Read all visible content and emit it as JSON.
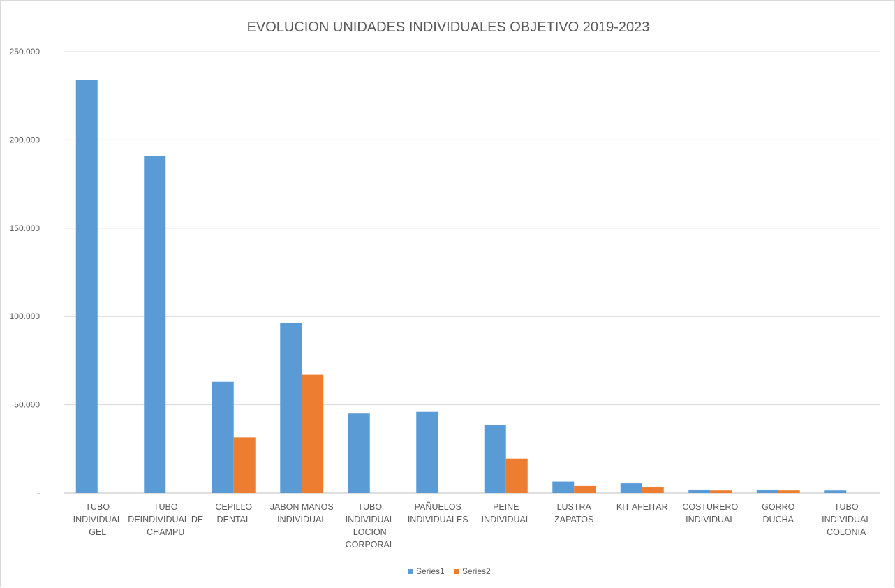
{
  "chart_data": {
    "type": "bar",
    "title": "EVOLUCION UNIDADES INDIVIDUALES OBJETIVO 2019-2023",
    "xlabel": "",
    "ylabel": "",
    "ylim": [
      0,
      250000
    ],
    "yticks": [
      {
        "value": 0,
        "label": "-"
      },
      {
        "value": 50000,
        "label": "50.000"
      },
      {
        "value": 100000,
        "label": "100.000"
      },
      {
        "value": 150000,
        "label": "150.000"
      },
      {
        "value": 200000,
        "label": "200.000"
      },
      {
        "value": 250000,
        "label": "250.000"
      }
    ],
    "grid": true,
    "legend_position": "bottom",
    "categories": [
      [
        "TUBO",
        "INDIVIDUAL",
        "GEL"
      ],
      [
        "TUBO",
        "DEINDIVIDUAL DE",
        "CHAMPU"
      ],
      [
        "CEPILLO",
        "DENTAL"
      ],
      [
        "JABON MANOS",
        "INDIVIDUAL"
      ],
      [
        "TUBO",
        "INDIVIDUAL",
        "LOCION",
        "CORPORAL"
      ],
      [
        "PAÑUELOS",
        "INDIVIDUALES"
      ],
      [
        "PEINE",
        "INDIVIDUAL"
      ],
      [
        "LUSTRA",
        "ZAPATOS"
      ],
      [
        "KIT AFEITAR"
      ],
      [
        "COSTURERO",
        "INDIVIDUAL"
      ],
      [
        "GORRO",
        "DUCHA"
      ],
      [
        "TUBO",
        "INDIVIDUAL",
        "COLONIA"
      ]
    ],
    "series": [
      {
        "name": "Series1",
        "color": "#5b9bd5",
        "values": [
          234000,
          191000,
          63000,
          96500,
          45000,
          46000,
          38500,
          6500,
          5500,
          2000,
          2000,
          1500
        ]
      },
      {
        "name": "Series2",
        "color": "#ed7d31",
        "values": [
          0,
          0,
          31500,
          67000,
          0,
          0,
          19500,
          4000,
          3500,
          1500,
          1500,
          0
        ]
      }
    ]
  }
}
